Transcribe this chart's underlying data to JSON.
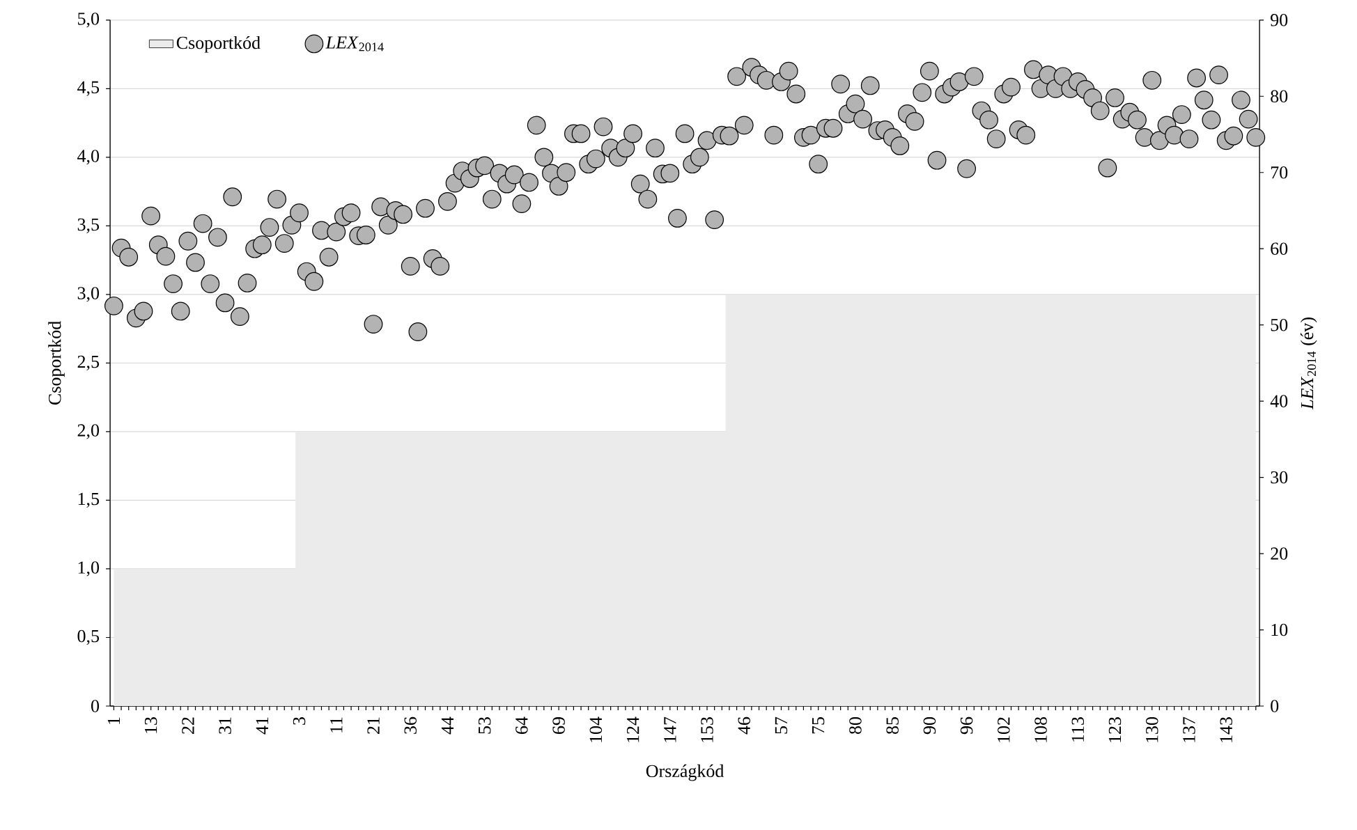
{
  "chart_data": {
    "type": "scatter",
    "xlabel": "Országkód",
    "ylabel": "Csoportkód",
    "y2label": "*LEX*$_{2014}$ (év)",
    "categories": [
      "1",
      null,
      null,
      null,
      null,
      "13",
      null,
      null,
      null,
      null,
      "22",
      null,
      null,
      null,
      null,
      "31",
      null,
      null,
      null,
      null,
      "41",
      null,
      null,
      null,
      null,
      "3",
      null,
      null,
      null,
      null,
      "11",
      null,
      null,
      null,
      null,
      "21",
      null,
      null,
      null,
      null,
      "36",
      null,
      null,
      null,
      null,
      "44",
      null,
      null,
      null,
      null,
      "53",
      null,
      null,
      null,
      null,
      "64",
      null,
      null,
      null,
      null,
      "69",
      null,
      null,
      null,
      null,
      "104",
      null,
      null,
      null,
      null,
      "124",
      null,
      null,
      null,
      null,
      "147",
      null,
      null,
      null,
      null,
      "153",
      null,
      null,
      null,
      null,
      "46",
      null,
      null,
      null,
      null,
      "57",
      null,
      null,
      null,
      null,
      "75",
      null,
      null,
      null,
      null,
      "80",
      null,
      null,
      null,
      null,
      "85",
      null,
      null,
      null,
      null,
      "90",
      null,
      null,
      null,
      null,
      "96",
      null,
      null,
      null,
      null,
      "102",
      null,
      null,
      null,
      null,
      "108",
      null,
      null,
      null,
      null,
      "113",
      null,
      null,
      null,
      null,
      "123",
      null,
      null,
      null,
      null,
      "130",
      null,
      null,
      null,
      null,
      "137",
      null,
      null,
      null,
      null,
      "143",
      null,
      null,
      null,
      null
    ],
    "series": [
      {
        "name": "Csoportkód",
        "type": "area",
        "color": "#ebebeb",
        "values": [
          1,
          1,
          1,
          1,
          1,
          1,
          1,
          1,
          1,
          1,
          1,
          1,
          1,
          1,
          1,
          1,
          1,
          1,
          1,
          1,
          1,
          1,
          1,
          1,
          1,
          2,
          2,
          2,
          2,
          2,
          2,
          2,
          2,
          2,
          2,
          2,
          2,
          2,
          2,
          2,
          2,
          2,
          2,
          2,
          2,
          2,
          2,
          2,
          2,
          2,
          2,
          2,
          2,
          2,
          2,
          2,
          2,
          2,
          2,
          2,
          2,
          2,
          2,
          2,
          2,
          2,
          2,
          2,
          2,
          2,
          2,
          2,
          2,
          2,
          2,
          2,
          2,
          2,
          2,
          2,
          2,
          2,
          2,
          3,
          3,
          3,
          3,
          3,
          3,
          3,
          3,
          3,
          3,
          3,
          3,
          3,
          3,
          3,
          3,
          3,
          3,
          3,
          3,
          3,
          3,
          3,
          3,
          3,
          3,
          3,
          3,
          3,
          3,
          3,
          3,
          3,
          3,
          3,
          3,
          3,
          3,
          3,
          3,
          3,
          3,
          3,
          3,
          3,
          3,
          3,
          3,
          3,
          3,
          3,
          3,
          3,
          3,
          3,
          3,
          3,
          3,
          3,
          3,
          3,
          3,
          3,
          3,
          3,
          3,
          3,
          3,
          3,
          3,
          3,
          3
        ]
      },
      {
        "name": "*LEX*$_{2014}$",
        "axis": "y2",
        "color": "#b3b3b3",
        "marker": "circle",
        "values": [
          52.5,
          60.1,
          58.9,
          50.9,
          51.8,
          64.3,
          60.5,
          59.0,
          55.4,
          51.8,
          61.0,
          58.2,
          63.3,
          55.4,
          61.5,
          52.9,
          66.8,
          51.1,
          55.5,
          60.0,
          60.5,
          62.8,
          66.5,
          60.7,
          63.1,
          64.7,
          57.0,
          55.7,
          62.4,
          58.9,
          62.2,
          64.2,
          64.7,
          61.7,
          61.8,
          50.1,
          65.5,
          63.1,
          65.0,
          64.5,
          57.7,
          49.1,
          65.3,
          58.7,
          57.7,
          66.2,
          68.6,
          70.2,
          69.2,
          70.6,
          70.9,
          66.5,
          69.9,
          68.5,
          69.7,
          65.9,
          68.7,
          76.2,
          72.0,
          69.9,
          68.2,
          70.0,
          75.1,
          75.1,
          71.1,
          71.8,
          76.0,
          73.2,
          72.0,
          73.2,
          75.1,
          68.5,
          66.5,
          73.2,
          69.8,
          69.9,
          64.0,
          75.1,
          71.1,
          72.0,
          74.2,
          63.8,
          74.9,
          74.8,
          82.6,
          76.2,
          83.8,
          82.8,
          82.1,
          74.9,
          81.9,
          83.3,
          80.3,
          74.6,
          74.9,
          71.1,
          75.8,
          75.8,
          81.6,
          77.7,
          79.0,
          77.0,
          81.4,
          75.5,
          75.6,
          74.6,
          73.5,
          77.7,
          76.7,
          80.5,
          83.3,
          71.6,
          80.3,
          81.2,
          81.9,
          70.5,
          82.6,
          78.1,
          76.9,
          74.4,
          80.3,
          81.2,
          75.6,
          74.9,
          83.5,
          81.0,
          82.8,
          81.0,
          82.6,
          81.0,
          81.9,
          80.9,
          79.8,
          78.1,
          70.6,
          79.8,
          77.0,
          77.9,
          76.9,
          74.6,
          82.1,
          74.2,
          76.2,
          74.9,
          77.6,
          74.4,
          82.4,
          79.5,
          76.9,
          82.8,
          74.2,
          74.8,
          79.5,
          77.0,
          74.6
        ]
      }
    ],
    "ylim": [
      0,
      5
    ],
    "yticks": [
      0,
      {
        "value": 0.5,
        "label": "0,5"
      },
      {
        "value": 1,
        "label": "1,0"
      },
      {
        "value": 1.5,
        "label": "1,5"
      },
      {
        "value": 2,
        "label": "2,0"
      },
      {
        "value": 2.5,
        "label": "2,5"
      },
      {
        "value": 3,
        "label": "3,0"
      },
      {
        "value": 3.5,
        "label": "3,5"
      },
      {
        "value": 4,
        "label": "4,0"
      },
      {
        "value": 4.5,
        "label": "4,5"
      },
      {
        "value": 5,
        "label": "5,0"
      }
    ],
    "y2lim": [
      0,
      90
    ],
    "y2ticks": [
      0,
      10,
      20,
      30,
      40,
      50,
      60,
      70,
      80,
      90
    ],
    "grid": "y",
    "legend": "top left"
  }
}
